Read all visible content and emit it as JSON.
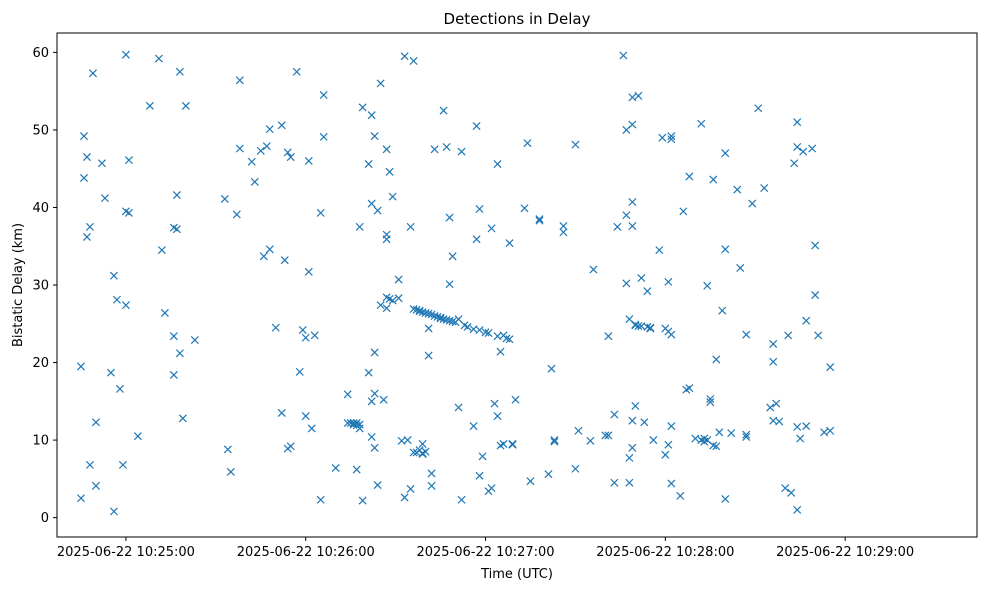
{
  "chart_data": {
    "type": "scatter",
    "title": "Detections in Delay",
    "xlabel": "Time (UTC)",
    "ylabel": "Bistatic Delay (km)",
    "marker": "x",
    "color": "#1f77b4",
    "grid": false,
    "x_unit": "2025-06-22 time of day (HH:MM:SS)",
    "xlim": [
      "2025-06-22 10:24:37",
      "2025-06-22 10:29:44"
    ],
    "ylim": [
      -2.5,
      62.5
    ],
    "x_ticks": [
      "2025-06-22 10:25:00",
      "2025-06-22 10:26:00",
      "2025-06-22 10:27:00",
      "2025-06-22 10:28:00",
      "2025-06-22 10:29:00"
    ],
    "y_ticks": [
      "0",
      "10",
      "20",
      "30",
      "40",
      "50",
      "60"
    ],
    "points": [
      [
        "10:24:45",
        2.5
      ],
      [
        "10:24:45",
        19.5
      ],
      [
        "10:24:46",
        43.8
      ],
      [
        "10:24:46",
        49.2
      ],
      [
        "10:24:47",
        36.2
      ],
      [
        "10:24:47",
        46.5
      ],
      [
        "10:24:48",
        6.8
      ],
      [
        "10:24:48",
        37.5
      ],
      [
        "10:24:49",
        57.3
      ],
      [
        "10:24:50",
        12.3
      ],
      [
        "10:24:50",
        4.1
      ],
      [
        "10:24:52",
        45.7
      ],
      [
        "10:24:53",
        41.2
      ],
      [
        "10:24:55",
        18.7
      ],
      [
        "10:24:56",
        0.8
      ],
      [
        "10:24:56",
        31.2
      ],
      [
        "10:24:57",
        28.1
      ],
      [
        "10:24:58",
        16.6
      ],
      [
        "10:24:59",
        6.8
      ],
      [
        "10:25:00",
        59.7
      ],
      [
        "10:25:00",
        39.5
      ],
      [
        "10:25:00",
        27.4
      ],
      [
        "10:25:01",
        39.3
      ],
      [
        "10:25:01",
        46.1
      ],
      [
        "10:25:04",
        10.5
      ],
      [
        "10:25:08",
        53.1
      ],
      [
        "10:25:11",
        59.2
      ],
      [
        "10:25:12",
        34.5
      ],
      [
        "10:25:13",
        26.4
      ],
      [
        "10:25:16",
        37.4
      ],
      [
        "10:25:16",
        18.4
      ],
      [
        "10:25:16",
        23.4
      ],
      [
        "10:25:17",
        37.2
      ],
      [
        "10:25:17",
        41.6
      ],
      [
        "10:25:18",
        57.5
      ],
      [
        "10:25:18",
        21.2
      ],
      [
        "10:25:19",
        12.8
      ],
      [
        "10:25:20",
        53.1
      ],
      [
        "10:25:23",
        22.9
      ],
      [
        "10:25:33",
        41.1
      ],
      [
        "10:25:34",
        8.8
      ],
      [
        "10:25:35",
        5.9
      ],
      [
        "10:25:37",
        39.1
      ],
      [
        "10:25:38",
        56.4
      ],
      [
        "10:25:38",
        47.6
      ],
      [
        "10:25:42",
        45.9
      ],
      [
        "10:25:43",
        43.3
      ],
      [
        "10:25:45",
        47.3
      ],
      [
        "10:25:46",
        33.7
      ],
      [
        "10:25:47",
        47.9
      ],
      [
        "10:25:48",
        50.1
      ],
      [
        "10:25:48",
        34.6
      ],
      [
        "10:25:50",
        24.5
      ],
      [
        "10:25:52",
        13.5
      ],
      [
        "10:25:52",
        50.6
      ],
      [
        "10:25:53",
        33.2
      ],
      [
        "10:25:54",
        8.9
      ],
      [
        "10:25:54",
        47.1
      ],
      [
        "10:25:55",
        46.5
      ],
      [
        "10:25:55",
        9.2
      ],
      [
        "10:25:57",
        57.5
      ],
      [
        "10:25:58",
        18.8
      ],
      [
        "10:25:59",
        24.2
      ],
      [
        "10:26:00",
        23.2
      ],
      [
        "10:26:00",
        13.1
      ],
      [
        "10:26:01",
        31.7
      ],
      [
        "10:26:01",
        46.0
      ],
      [
        "10:26:02",
        11.5
      ],
      [
        "10:26:03",
        23.5
      ],
      [
        "10:26:05",
        39.3
      ],
      [
        "10:26:05",
        2.3
      ],
      [
        "10:26:06",
        54.5
      ],
      [
        "10:26:06",
        49.1
      ],
      [
        "10:26:10",
        6.4
      ],
      [
        "10:26:14",
        12.2
      ],
      [
        "10:26:14",
        15.9
      ],
      [
        "10:26:15",
        12.2
      ],
      [
        "10:26:16",
        12.2
      ],
      [
        "10:26:16",
        12.0
      ],
      [
        "10:26:17",
        6.2
      ],
      [
        "10:26:17",
        11.9
      ],
      [
        "10:26:17",
        12.2
      ],
      [
        "10:26:18",
        12.0
      ],
      [
        "10:26:18",
        11.5
      ],
      [
        "10:26:18",
        37.5
      ],
      [
        "10:26:19",
        2.2
      ],
      [
        "10:26:19",
        52.9
      ],
      [
        "10:26:21",
        45.6
      ],
      [
        "10:26:21",
        18.7
      ],
      [
        "10:26:22",
        51.9
      ],
      [
        "10:26:22",
        40.5
      ],
      [
        "10:26:22",
        15.0
      ],
      [
        "10:26:22",
        10.4
      ],
      [
        "10:26:23",
        9.0
      ],
      [
        "10:26:23",
        16.0
      ],
      [
        "10:26:23",
        21.3
      ],
      [
        "10:26:23",
        49.2
      ],
      [
        "10:26:24",
        4.2
      ],
      [
        "10:26:24",
        39.6
      ],
      [
        "10:26:25",
        56.0
      ],
      [
        "10:26:25",
        27.4
      ],
      [
        "10:26:26",
        15.2
      ],
      [
        "10:26:27",
        47.5
      ],
      [
        "10:26:27",
        28.4
      ],
      [
        "10:26:27",
        36.5
      ],
      [
        "10:26:27",
        35.9
      ],
      [
        "10:26:27",
        27.0
      ],
      [
        "10:26:28",
        44.6
      ],
      [
        "10:26:28",
        28.2
      ],
      [
        "10:26:29",
        41.4
      ],
      [
        "10:26:29",
        28.0
      ],
      [
        "10:26:31",
        30.7
      ],
      [
        "10:26:31",
        28.3
      ],
      [
        "10:26:32",
        9.9
      ],
      [
        "10:26:33",
        2.6
      ],
      [
        "10:26:33",
        59.5
      ],
      [
        "10:26:34",
        10.0
      ],
      [
        "10:26:35",
        37.5
      ],
      [
        "10:26:35",
        3.7
      ],
      [
        "10:26:36",
        58.9
      ],
      [
        "10:26:36",
        8.4
      ],
      [
        "10:26:36",
        26.9
      ],
      [
        "10:26:37",
        26.8
      ],
      [
        "10:26:37",
        8.4
      ],
      [
        "10:26:38",
        26.7
      ],
      [
        "10:26:38",
        8.7
      ],
      [
        "10:26:38",
        26.6
      ],
      [
        "10:26:39",
        26.5
      ],
      [
        "10:26:39",
        8.3
      ],
      [
        "10:26:39",
        9.5
      ],
      [
        "10:26:39",
        8.2
      ],
      [
        "10:26:40",
        26.4
      ],
      [
        "10:26:40",
        8.5
      ],
      [
        "10:26:41",
        26.3
      ],
      [
        "10:26:41",
        20.9
      ],
      [
        "10:26:41",
        24.4
      ],
      [
        "10:26:42",
        26.2
      ],
      [
        "10:26:42",
        5.7
      ],
      [
        "10:26:42",
        4.1
      ],
      [
        "10:26:43",
        26.0
      ],
      [
        "10:26:43",
        47.5
      ],
      [
        "10:26:44",
        25.9
      ],
      [
        "10:26:45",
        25.8
      ],
      [
        "10:26:45",
        25.7
      ],
      [
        "10:26:46",
        25.6
      ],
      [
        "10:26:46",
        52.5
      ],
      [
        "10:26:47",
        25.5
      ],
      [
        "10:26:47",
        47.8
      ],
      [
        "10:26:48",
        25.4
      ],
      [
        "10:26:48",
        38.7
      ],
      [
        "10:26:48",
        30.1
      ],
      [
        "10:26:49",
        25.3
      ],
      [
        "10:26:49",
        33.7
      ],
      [
        "10:26:50",
        25.2
      ],
      [
        "10:26:51",
        25.6
      ],
      [
        "10:26:51",
        14.2
      ],
      [
        "10:26:52",
        47.2
      ],
      [
        "10:26:52",
        2.3
      ],
      [
        "10:26:53",
        24.8
      ],
      [
        "10:26:54",
        24.6
      ],
      [
        "10:26:56",
        24.3
      ],
      [
        "10:26:56",
        11.8
      ],
      [
        "10:26:57",
        50.5
      ],
      [
        "10:26:57",
        35.9
      ],
      [
        "10:26:58",
        5.4
      ],
      [
        "10:26:58",
        39.8
      ],
      [
        "10:26:58",
        24.2
      ],
      [
        "10:26:59",
        7.9
      ],
      [
        "10:27:00",
        23.9
      ],
      [
        "10:27:01",
        23.8
      ],
      [
        "10:27:01",
        3.4
      ],
      [
        "10:27:02",
        3.8
      ],
      [
        "10:27:02",
        37.3
      ],
      [
        "10:27:03",
        14.7
      ],
      [
        "10:27:04",
        45.6
      ],
      [
        "10:27:04",
        23.4
      ],
      [
        "10:27:04",
        13.1
      ],
      [
        "10:27:05",
        9.3
      ],
      [
        "10:27:05",
        21.4
      ],
      [
        "10:27:06",
        23.5
      ],
      [
        "10:27:06",
        9.5
      ],
      [
        "10:27:07",
        23.1
      ],
      [
        "10:27:08",
        35.4
      ],
      [
        "10:27:08",
        23.0
      ],
      [
        "10:27:09",
        9.4
      ],
      [
        "10:27:09",
        9.5
      ],
      [
        "10:27:10",
        15.2
      ],
      [
        "10:27:13",
        39.9
      ],
      [
        "10:27:14",
        48.3
      ],
      [
        "10:27:15",
        4.7
      ],
      [
        "10:27:18",
        38.5
      ],
      [
        "10:27:18",
        38.3
      ],
      [
        "10:27:21",
        5.6
      ],
      [
        "10:27:22",
        19.2
      ],
      [
        "10:27:23",
        10.0
      ],
      [
        "10:27:23",
        9.8
      ],
      [
        "10:27:26",
        37.6
      ],
      [
        "10:27:26",
        36.8
      ],
      [
        "10:27:30",
        48.1
      ],
      [
        "10:27:30",
        6.3
      ],
      [
        "10:27:31",
        11.2
      ],
      [
        "10:27:35",
        9.9
      ],
      [
        "10:27:36",
        32.0
      ],
      [
        "10:27:40",
        10.6
      ],
      [
        "10:27:41",
        23.4
      ],
      [
        "10:27:41",
        10.6
      ],
      [
        "10:27:43",
        13.3
      ],
      [
        "10:27:43",
        4.5
      ],
      [
        "10:27:44",
        37.5
      ],
      [
        "10:27:46",
        59.6
      ],
      [
        "10:27:47",
        50.0
      ],
      [
        "10:27:47",
        30.2
      ],
      [
        "10:27:47",
        39.0
      ],
      [
        "10:27:48",
        25.6
      ],
      [
        "10:27:48",
        4.5
      ],
      [
        "10:27:48",
        7.7
      ],
      [
        "10:27:49",
        50.7
      ],
      [
        "10:27:49",
        54.2
      ],
      [
        "10:27:49",
        40.7
      ],
      [
        "10:27:49",
        37.6
      ],
      [
        "10:27:49",
        9.0
      ],
      [
        "10:27:49",
        12.5
      ],
      [
        "10:27:50",
        24.9
      ],
      [
        "10:27:50",
        14.4
      ],
      [
        "10:27:50",
        24.8
      ],
      [
        "10:27:51",
        54.4
      ],
      [
        "10:27:51",
        24.7
      ],
      [
        "10:27:52",
        30.9
      ],
      [
        "10:27:52",
        24.7
      ],
      [
        "10:27:53",
        12.3
      ],
      [
        "10:27:54",
        29.2
      ],
      [
        "10:27:54",
        24.6
      ],
      [
        "10:27:55",
        24.4
      ],
      [
        "10:27:55",
        24.5
      ],
      [
        "10:27:56",
        10.0
      ],
      [
        "10:27:58",
        34.5
      ],
      [
        "10:27:59",
        49.0
      ],
      [
        "10:28:00",
        24.4
      ],
      [
        "10:28:00",
        8.1
      ],
      [
        "10:28:01",
        30.4
      ],
      [
        "10:28:01",
        24.0
      ],
      [
        "10:28:01",
        9.4
      ],
      [
        "10:28:02",
        11.8
      ],
      [
        "10:28:02",
        49.2
      ],
      [
        "10:28:02",
        48.8
      ],
      [
        "10:28:02",
        23.6
      ],
      [
        "10:28:02",
        4.4
      ],
      [
        "10:28:05",
        2.8
      ],
      [
        "10:28:06",
        39.5
      ],
      [
        "10:28:07",
        16.5
      ],
      [
        "10:28:08",
        44.0
      ],
      [
        "10:28:08",
        16.7
      ],
      [
        "10:28:10",
        10.2
      ],
      [
        "10:28:12",
        10.0
      ],
      [
        "10:28:12",
        50.8
      ],
      [
        "10:28:13",
        9.8
      ],
      [
        "10:28:13",
        10.2
      ],
      [
        "10:28:14",
        10.0
      ],
      [
        "10:28:14",
        29.9
      ],
      [
        "10:28:15",
        15.3
      ],
      [
        "10:28:15",
        14.9
      ],
      [
        "10:28:16",
        9.3
      ],
      [
        "10:28:16",
        43.6
      ],
      [
        "10:28:17",
        20.4
      ],
      [
        "10:28:17",
        9.2
      ],
      [
        "10:28:18",
        11.0
      ],
      [
        "10:28:19",
        26.7
      ],
      [
        "10:28:20",
        47.0
      ],
      [
        "10:28:20",
        34.6
      ],
      [
        "10:28:20",
        2.4
      ],
      [
        "10:28:22",
        10.9
      ],
      [
        "10:28:24",
        42.3
      ],
      [
        "10:28:25",
        32.2
      ],
      [
        "10:28:27",
        23.6
      ],
      [
        "10:28:27",
        10.7
      ],
      [
        "10:28:27",
        10.4
      ],
      [
        "10:28:29",
        40.5
      ],
      [
        "10:28:31",
        52.8
      ],
      [
        "10:28:33",
        42.5
      ],
      [
        "10:28:35",
        14.2
      ],
      [
        "10:28:36",
        22.4
      ],
      [
        "10:28:36",
        20.1
      ],
      [
        "10:28:36",
        12.5
      ],
      [
        "10:28:37",
        14.7
      ],
      [
        "10:28:38",
        12.4
      ],
      [
        "10:28:40",
        3.8
      ],
      [
        "10:28:41",
        23.5
      ],
      [
        "10:28:42",
        3.2
      ],
      [
        "10:28:43",
        45.7
      ],
      [
        "10:28:44",
        51.0
      ],
      [
        "10:28:44",
        47.8
      ],
      [
        "10:28:44",
        11.7
      ],
      [
        "10:28:44",
        1.0
      ],
      [
        "10:28:45",
        10.2
      ],
      [
        "10:28:46",
        47.2
      ],
      [
        "10:28:47",
        25.4
      ],
      [
        "10:28:47",
        11.8
      ],
      [
        "10:28:49",
        47.6
      ],
      [
        "10:28:50",
        35.1
      ],
      [
        "10:28:50",
        28.7
      ],
      [
        "10:28:51",
        23.5
      ],
      [
        "10:28:53",
        11.0
      ],
      [
        "10:28:55",
        19.4
      ],
      [
        "10:28:55",
        11.2
      ]
    ]
  }
}
